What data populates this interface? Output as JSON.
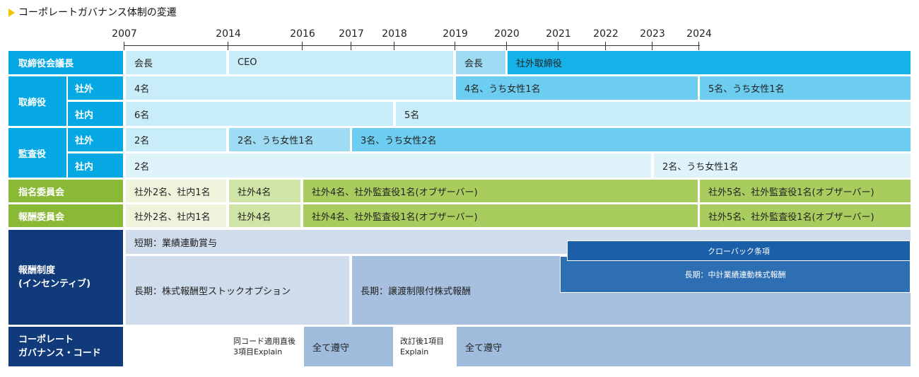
{
  "title": "コーポレートガバナンス体制の変遷",
  "years": [
    "2007",
    "2014",
    "2016",
    "2017",
    "2018",
    "2019",
    "2020",
    "2021",
    "2022",
    "2023",
    "2024"
  ],
  "colors": {
    "board_label": "#05a8e3",
    "committee_label": "#8ab935",
    "compensation_label": "#103a7a",
    "cg_label": "#103a7a",
    "title_marker": "#f6c400"
  },
  "rows": {
    "chair": {
      "label": "取締役会議長",
      "cells": [
        "会長",
        "CEO",
        "会長",
        "社外取締役"
      ]
    },
    "directors": {
      "label": "取締役",
      "outside_label": "社外",
      "outside_cells": [
        "4名",
        "4名、うち女性1名",
        "5名、うち女性1名"
      ],
      "inside_label": "社内",
      "inside_cells": [
        "6名",
        "5名"
      ]
    },
    "auditors": {
      "label": "監査役",
      "outside_label": "社外",
      "outside_cells": [
        "2名",
        "2名、うち女性1名",
        "3名、うち女性2名"
      ],
      "inside_label": "社内",
      "inside_cells": [
        "2名",
        "2名、うち女性1名"
      ]
    },
    "nomination": {
      "label": "指名委員会",
      "cells": [
        "社外2名、社内1名",
        "社外4名",
        "社外4名、社外監査役1名(オブザーバー)",
        "社外5名、社外監査役1名(オブザーバー)"
      ]
    },
    "remuneration": {
      "label": "報酬委員会",
      "cells": [
        "社外2名、社内1名",
        "社外4名",
        "社外4名、社外監査役1名(オブザーバー)",
        "社外5名、社外監査役1名(オブザーバー)"
      ]
    },
    "compensation": {
      "label_line1": "報酬制度",
      "label_line2": "(インセンティブ)",
      "short_term": "短期：業績連動賞与",
      "clawback": "クローバック条項",
      "long_term_1": "長期：株式報酬型ストックオプション",
      "long_term_2": "長期：譲渡制限付株式報酬",
      "long_term_3": "長期：中計業績連動株式報酬"
    },
    "cg_code": {
      "label_line1": "コーポレート",
      "label_line2": "ガバナンス・コード",
      "cell1_line1": "同コード適用直後",
      "cell1_line2": "3項目Explain",
      "cell2": "全て遵守",
      "cell3_line1": "改訂後1項目",
      "cell3_line2": "Explain",
      "cell4": "全て遵守"
    }
  }
}
